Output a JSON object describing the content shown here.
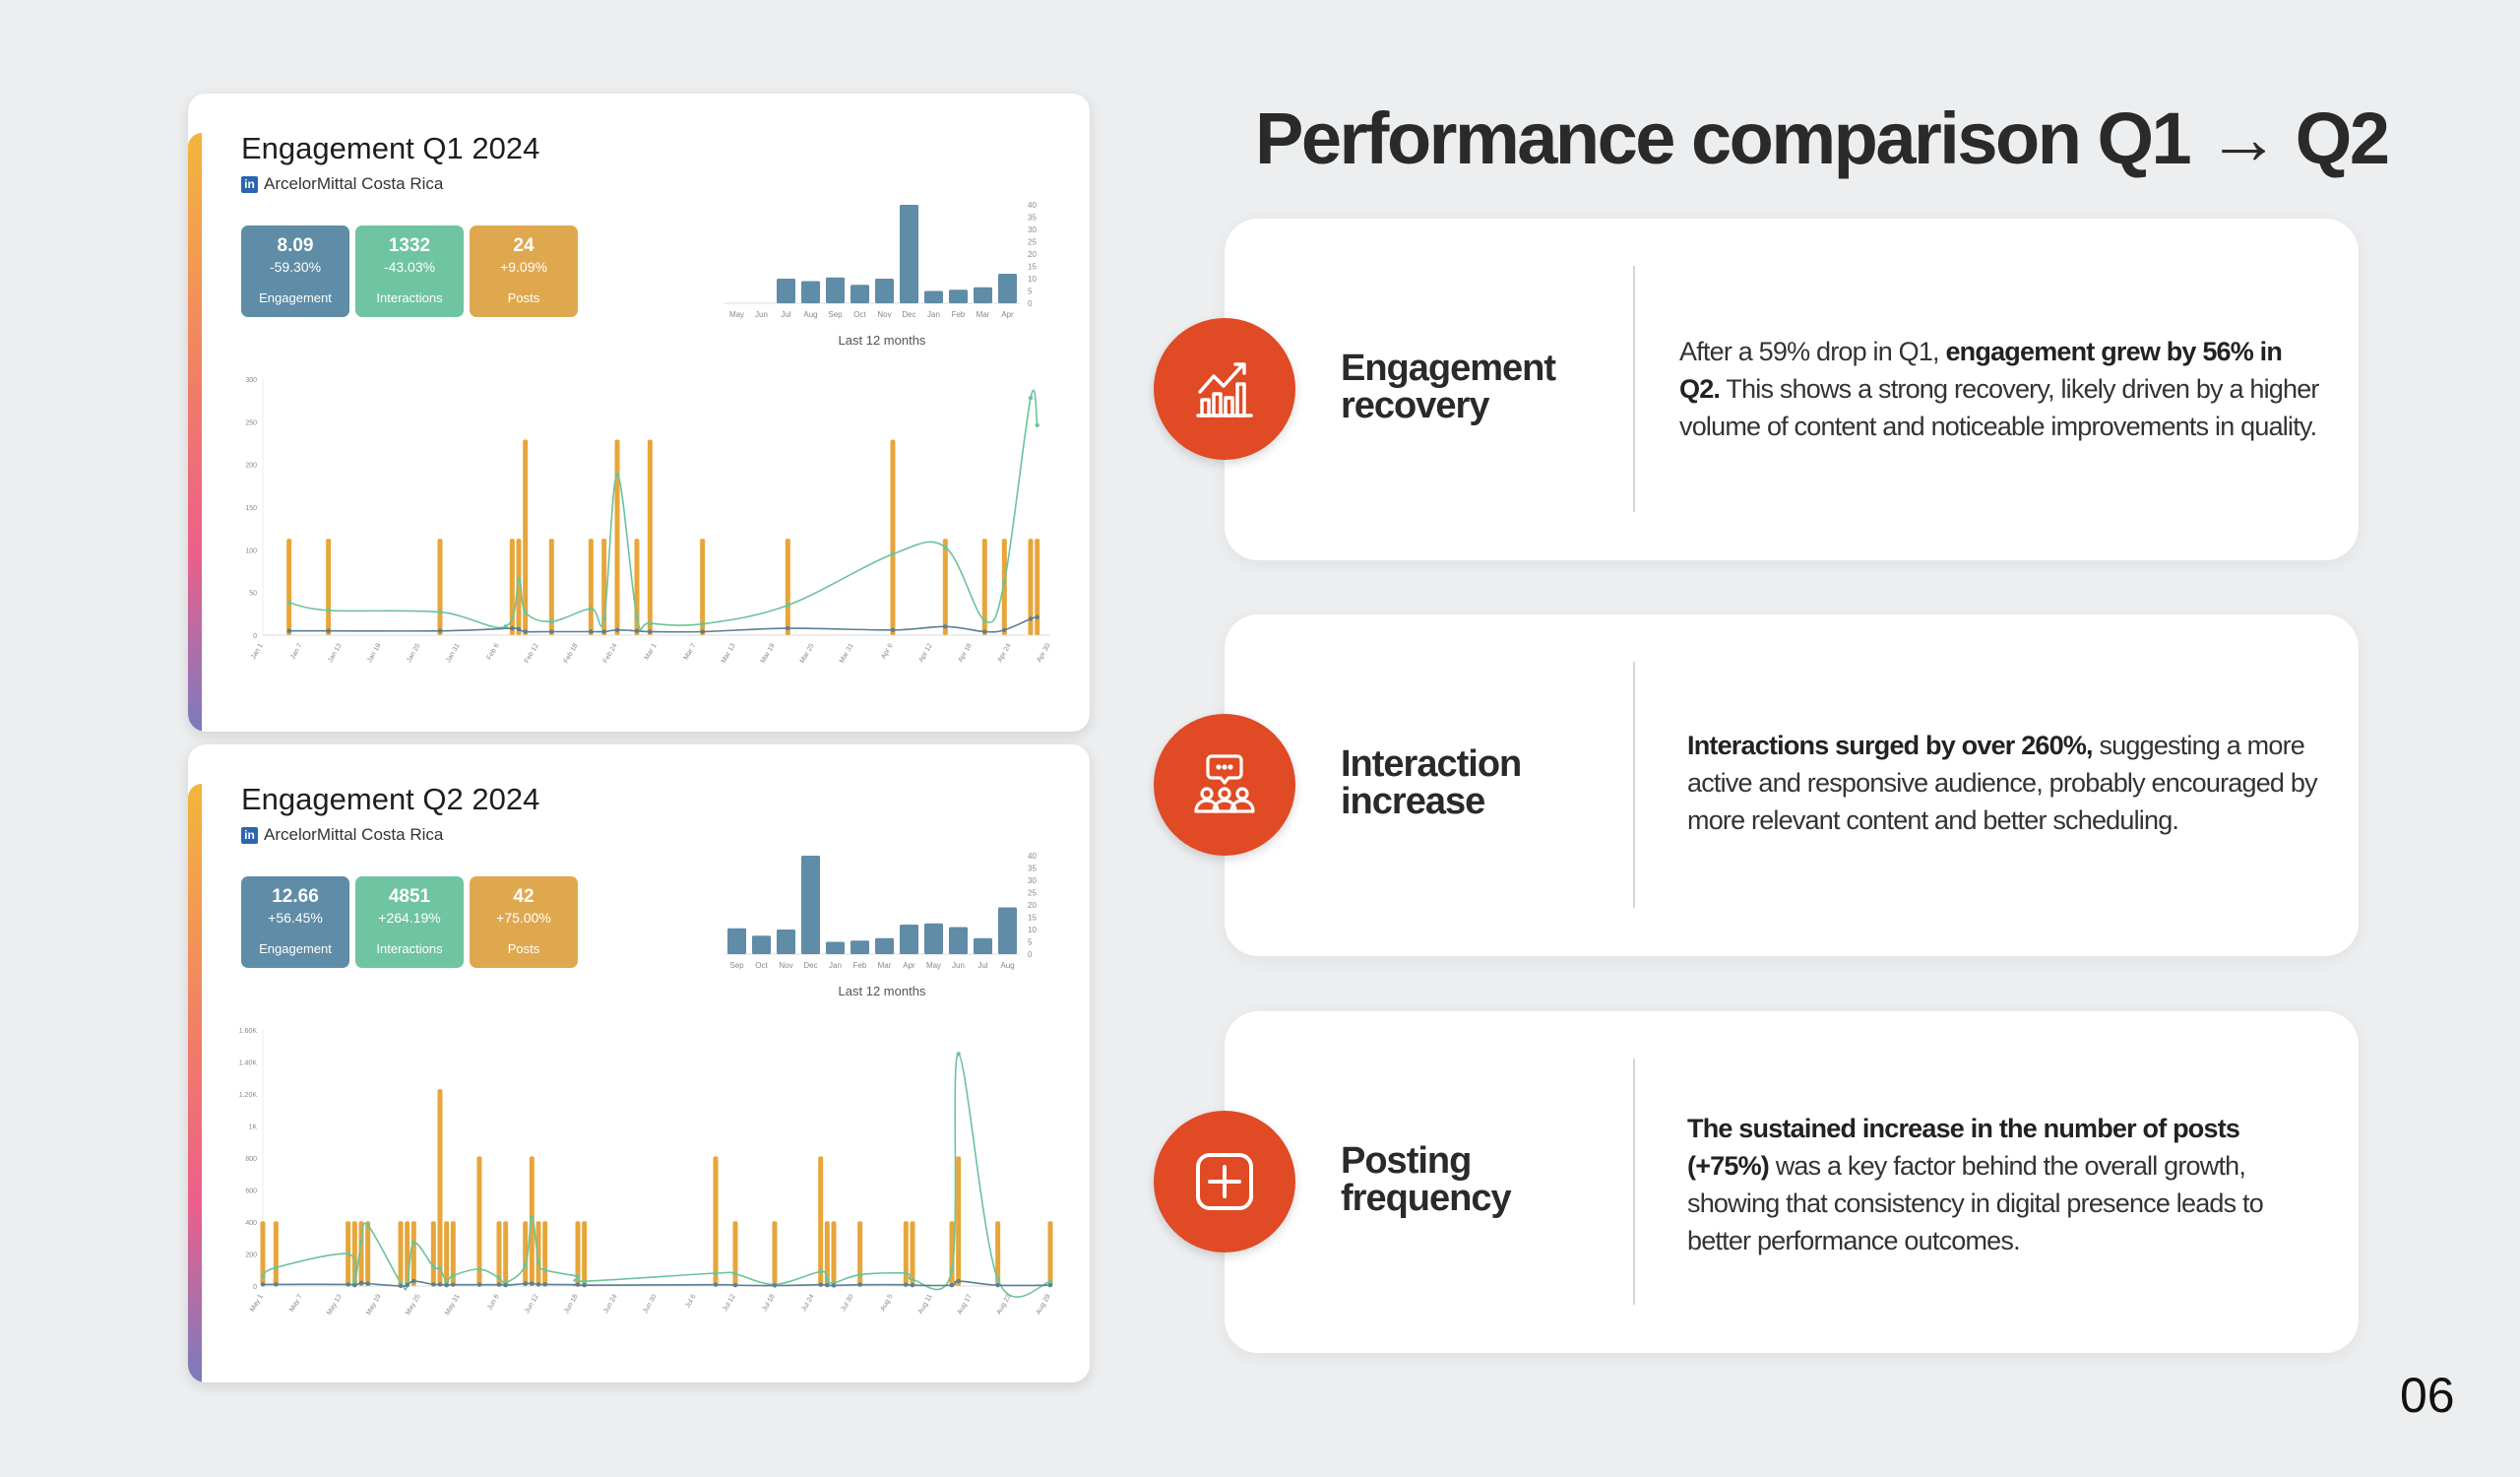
{
  "colors": {
    "engagement": "#5f8ca6",
    "interactions": "#6fc4a1",
    "posts": "#e0a84e",
    "bar": "#e7a63a",
    "line_green": "#6cc39a",
    "line_blue": "#5a7f96",
    "accent": "#e04a25"
  },
  "dashboards": [
    {
      "title": "Engagement Q1 2024",
      "account": "ArcelorMittal Costa Rica",
      "network_icon": "in",
      "stats": [
        {
          "value": "8.09",
          "change": "-59.30%",
          "label": "Engagement"
        },
        {
          "value": "1332",
          "change": "-43.03%",
          "label": "Interactions"
        },
        {
          "value": "24",
          "change": "+9.09%",
          "label": "Posts"
        }
      ],
      "mini_caption": "Last 12 months"
    },
    {
      "title": "Engagement Q2 2024",
      "account": "ArcelorMittal Costa Rica",
      "network_icon": "in",
      "stats": [
        {
          "value": "12.66",
          "change": "+56.45%",
          "label": "Engagement"
        },
        {
          "value": "4851",
          "change": "+264.19%",
          "label": "Interactions"
        },
        {
          "value": "42",
          "change": "+75.00%",
          "label": "Posts"
        }
      ],
      "mini_caption": "Last 12 months"
    }
  ],
  "chart_data": [
    {
      "type": "bar",
      "name": "q1-monthly",
      "categories": [
        "May",
        "Jun",
        "Jul",
        "Aug",
        "Sep",
        "Oct",
        "Nov",
        "Dec",
        "Jan",
        "Feb",
        "Mar",
        "Apr"
      ],
      "values": [
        0,
        0,
        10,
        9,
        10.5,
        7.5,
        10,
        40,
        5,
        5.5,
        6.5,
        12
      ],
      "yticks": [
        "0",
        "5",
        "10",
        "15",
        "20",
        "25",
        "30",
        "35",
        "40"
      ],
      "ylim": [
        0,
        40
      ],
      "xlabel": "Last 12 months"
    },
    {
      "type": "bar",
      "name": "q2-monthly",
      "categories": [
        "Sep",
        "Oct",
        "Nov",
        "Dec",
        "Jan",
        "Feb",
        "Mar",
        "Apr",
        "May",
        "Jun",
        "Jul",
        "Aug"
      ],
      "values": [
        10.5,
        7.5,
        10,
        40,
        5,
        5.5,
        6.5,
        12,
        12.5,
        11,
        6.5,
        19
      ],
      "yticks": [
        "0",
        "5",
        "10",
        "15",
        "20",
        "25",
        "30",
        "35",
        "40"
      ],
      "ylim": [
        0,
        40
      ],
      "xlabel": "Last 12 months"
    },
    {
      "type": "bar+line",
      "name": "q1-daily",
      "xlim": [
        0,
        120
      ],
      "ylim": [
        0,
        300
      ],
      "yticks": [
        {
          "v": 0,
          "t": "0"
        },
        {
          "v": 50,
          "t": "50"
        },
        {
          "v": 100,
          "t": "100"
        },
        {
          "v": 150,
          "t": "150"
        },
        {
          "v": 200,
          "t": "200"
        },
        {
          "v": 250,
          "t": "250"
        },
        {
          "v": 300,
          "t": "300"
        }
      ],
      "xticks": [
        "Jan 1",
        "Jan 7",
        "Jan 13",
        "Jan 19",
        "Jan 25",
        "Jan 31",
        "Feb 6",
        "Feb 12",
        "Feb 18",
        "Feb 24",
        "Mar 1",
        "Mar 7",
        "Mar 13",
        "Mar 19",
        "Mar 25",
        "Mar 31",
        "Apr 6",
        "Apr 12",
        "Apr 18",
        "Apr 24",
        "Apr 30"
      ],
      "bars": {
        "x": [
          4,
          10,
          27,
          38,
          39,
          40,
          44,
          50,
          52,
          54,
          57,
          59,
          67,
          80,
          96,
          104,
          110,
          113,
          117,
          118
        ],
        "y": [
          113,
          113,
          113,
          113,
          113,
          229,
          113,
          113,
          113,
          229,
          113,
          229,
          113,
          113,
          229,
          113,
          113,
          113,
          113,
          113
        ]
      },
      "series": [
        {
          "name": "green",
          "x": [
            4,
            10,
            27,
            37,
            39,
            40,
            44,
            50,
            52,
            54,
            57,
            59,
            67,
            80,
            96,
            104,
            110,
            113,
            117,
            118
          ],
          "y": [
            38,
            29,
            27,
            10,
            66,
            27,
            16,
            31,
            19,
            188,
            21,
            14,
            13,
            35,
            95,
            103,
            17,
            62,
            278,
            246
          ]
        },
        {
          "name": "blue",
          "x": [
            4,
            10,
            27,
            38,
            39,
            40,
            44,
            50,
            52,
            54,
            57,
            59,
            67,
            80,
            96,
            104,
            110,
            113,
            117,
            118
          ],
          "y": [
            5,
            5,
            5,
            8,
            7,
            4,
            4,
            4,
            4,
            6,
            5,
            4,
            4,
            8,
            6,
            10,
            4,
            6,
            19,
            21
          ]
        }
      ]
    },
    {
      "type": "bar+line",
      "name": "q2-daily",
      "xlim": [
        0,
        120
      ],
      "ylim": [
        0,
        1600
      ],
      "yticks": [
        {
          "v": 0,
          "t": "0"
        },
        {
          "v": 200,
          "t": "200"
        },
        {
          "v": 400,
          "t": "400"
        },
        {
          "v": 600,
          "t": "600"
        },
        {
          "v": 800,
          "t": "800"
        },
        {
          "v": 1000,
          "t": "1K"
        },
        {
          "v": 1200,
          "t": "1.20K"
        },
        {
          "v": 1400,
          "t": "1.40K"
        },
        {
          "v": 1600,
          "t": "1.60K"
        }
      ],
      "xticks": [
        "May 1",
        "May 7",
        "May 13",
        "May 19",
        "May 25",
        "May 31",
        "Jun 6",
        "Jun 12",
        "Jun 18",
        "Jun 24",
        "Jun 30",
        "Jul 6",
        "Jul 12",
        "Jul 18",
        "Jul 24",
        "Jul 30",
        "Aug 5",
        "Aug 11",
        "Aug 17",
        "Aug 23",
        "Aug 29"
      ],
      "bars": {
        "x": [
          0,
          2,
          13,
          14,
          15,
          16,
          21,
          22,
          23,
          26,
          27,
          28,
          29,
          33,
          36,
          37,
          40,
          41,
          42,
          43,
          48,
          49,
          69,
          72,
          78,
          85,
          86,
          87,
          91,
          98,
          99,
          105,
          106,
          112,
          120
        ],
        "y": [
          405,
          405,
          405,
          405,
          405,
          405,
          405,
          405,
          405,
          405,
          1230,
          405,
          405,
          810,
          405,
          405,
          405,
          810,
          405,
          405,
          405,
          405,
          810,
          405,
          405,
          810,
          405,
          405,
          405,
          405,
          405,
          405,
          810,
          405,
          405
        ]
      },
      "series": [
        {
          "name": "green",
          "x": [
            0,
            2,
            13,
            14,
            15,
            16,
            21,
            22,
            23,
            26,
            27,
            28,
            29,
            33,
            36,
            37,
            40,
            41,
            42,
            43,
            48,
            49,
            69,
            72,
            78,
            85,
            86,
            87,
            91,
            98,
            99,
            105,
            106,
            112,
            120
          ],
          "y": [
            60,
            115,
            200,
            30,
            280,
            380,
            20,
            10,
            270,
            120,
            110,
            30,
            65,
            105,
            50,
            20,
            130,
            430,
            150,
            100,
            60,
            30,
            80,
            75,
            10,
            90,
            40,
            20,
            70,
            80,
            40,
            100,
            1450,
            40,
            25
          ]
        },
        {
          "name": "blue",
          "x": [
            0,
            2,
            13,
            14,
            15,
            16,
            21,
            22,
            23,
            26,
            27,
            28,
            29,
            33,
            36,
            37,
            40,
            41,
            42,
            43,
            48,
            49,
            69,
            72,
            78,
            85,
            86,
            87,
            91,
            98,
            99,
            105,
            106,
            112,
            120
          ],
          "y": [
            10,
            10,
            10,
            5,
            20,
            15,
            0,
            5,
            30,
            10,
            10,
            5,
            8,
            8,
            8,
            5,
            15,
            15,
            10,
            10,
            8,
            5,
            8,
            5,
            3,
            8,
            5,
            3,
            8,
            8,
            5,
            5,
            30,
            5,
            5
          ]
        }
      ]
    }
  ],
  "headline": "Performance comparison Q1 → Q2",
  "cards": [
    {
      "heading": "Engagement recovery",
      "icon": "chart-growth-icon",
      "body": [
        "After a 59% drop in Q1, ",
        "engagement grew by 56% in Q2.",
        " This shows a strong recovery, likely driven by a higher volume of content and noticeable improvements in quality."
      ]
    },
    {
      "heading": "Interaction increase",
      "icon": "audience-chat-icon",
      "body": [
        "Interactions surged by over 260%,",
        " suggesting a more active and responsive audience, probably encouraged by more relevant content and better scheduling."
      ]
    },
    {
      "heading": "Posting frequency",
      "icon": "add-post-icon",
      "body": [
        "The sustained increase in the number of posts (+75%)",
        " was a key factor behind the overall growth, showing that consistency in digital presence leads to better performance outcomes."
      ]
    }
  ],
  "page_number": "06"
}
